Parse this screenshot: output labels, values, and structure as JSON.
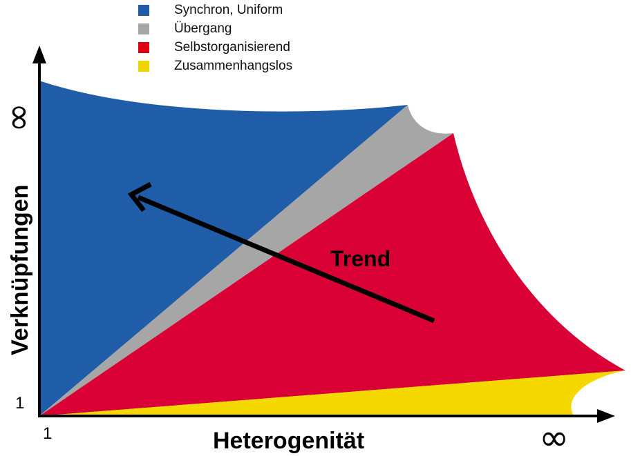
{
  "legend": {
    "items": [
      {
        "label": "Synchron, Uniform",
        "color": "#1f5da8"
      },
      {
        "label": "Übergang",
        "color": "#a6a6a6"
      },
      {
        "label": "Selbstorganisierend",
        "color": "#e00010"
      },
      {
        "label": "Zusammenhangslos",
        "color": "#f0d400"
      }
    ]
  },
  "regions": {
    "synchron_color": "#1f5da8",
    "uebergang_color": "#a6a6a6",
    "selbstorg_color": "#d80035",
    "zusammenhangslos_color": "#f5d800"
  },
  "axes": {
    "x_title": "Heterogenität",
    "y_title": "Verknüpfungen",
    "x_origin": "1",
    "y_origin": "1",
    "x_infinity": "∞",
    "y_infinity": "∞"
  },
  "trend": {
    "label": "Trend"
  }
}
